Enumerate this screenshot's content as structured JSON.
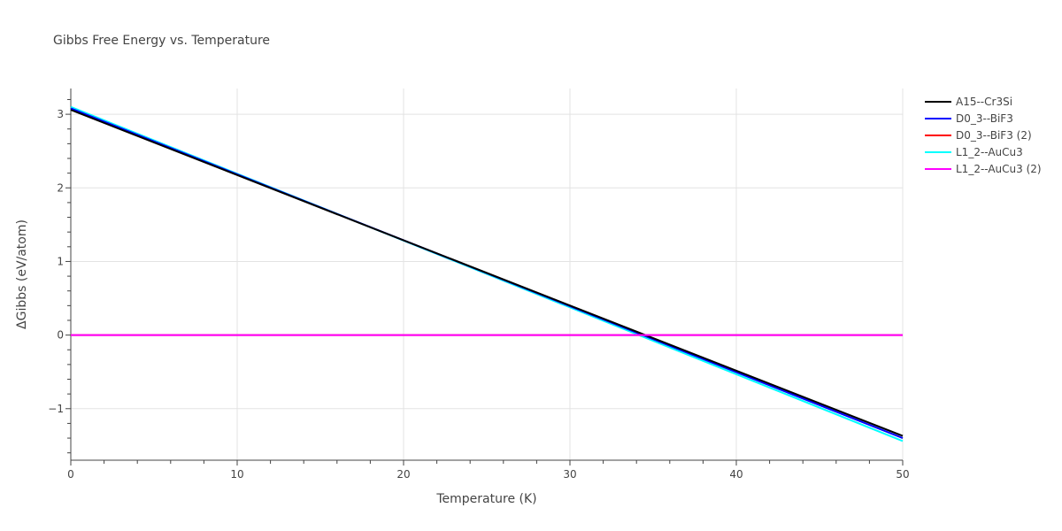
{
  "chart_data": {
    "type": "line",
    "title": "Gibbs Free Energy vs. Temperature",
    "xlabel": "Temperature (K)",
    "ylabel": "ΔGibbs (eV/atom)",
    "xlim": [
      0,
      50
    ],
    "ylim": [
      -1.7,
      3.35
    ],
    "xticks": [
      0,
      10,
      20,
      30,
      40,
      50
    ],
    "xtick_labels": [
      "0",
      "10",
      "20",
      "30",
      "40",
      "50"
    ],
    "yticks": [
      -1,
      0,
      1,
      2,
      3
    ],
    "ytick_labels": [
      "−1",
      "0",
      "1",
      "2",
      "3"
    ],
    "grid": true,
    "legend_position": "top-right",
    "series": [
      {
        "name": "A15--Cr3Si",
        "color": "#000000",
        "x": [
          0,
          50
        ],
        "y": [
          3.06,
          -1.37
        ]
      },
      {
        "name": "D0_3--BiF3",
        "color": "#0000ff",
        "x": [
          0,
          50
        ],
        "y": [
          3.08,
          -1.4
        ]
      },
      {
        "name": "D0_3--BiF3 (2)",
        "color": "#ff0000",
        "x": [
          0,
          50
        ],
        "y": [
          0,
          0
        ]
      },
      {
        "name": "L1_2--AuCu3",
        "color": "#00ffff",
        "x": [
          0,
          50
        ],
        "y": [
          3.1,
          -1.44
        ]
      },
      {
        "name": "L1_2--AuCu3 (2)",
        "color": "#ff00ff",
        "x": [
          0,
          50
        ],
        "y": [
          0,
          0
        ]
      }
    ]
  }
}
